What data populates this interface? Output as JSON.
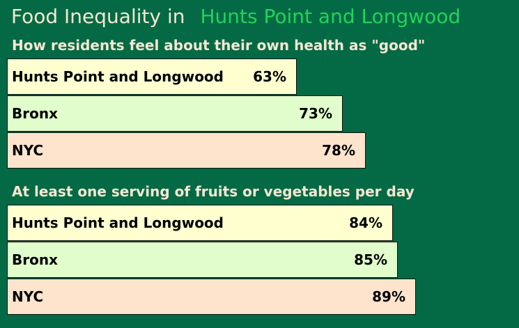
{
  "title": {
    "main": "Food Inequality in",
    "accent": "Hunts Point and Longwood"
  },
  "colors": {
    "background": "#046a45",
    "title_text": "#f6e8d2",
    "accent": "#22d35a",
    "hunts_point_bar": "#ffffd0",
    "bronx_bar": "#e1fdcb",
    "nyc_bar": "#fee4cc"
  },
  "chart_data": [
    {
      "type": "bar",
      "orientation": "horizontal",
      "title": "How residents feel about their own health as \"good\"",
      "categories": [
        "Hunts Point and Longwood",
        "Bronx",
        "NYC"
      ],
      "values": [
        63,
        73,
        78
      ],
      "value_labels": [
        "63%",
        "73%",
        "78%"
      ],
      "unit": "%",
      "xlim": [
        0,
        100
      ],
      "grid": false
    },
    {
      "type": "bar",
      "orientation": "horizontal",
      "title": "At least one serving of fruits or vegetables per day",
      "categories": [
        "Hunts Point and Longwood",
        "Bronx",
        "NYC"
      ],
      "values": [
        84,
        85,
        89
      ],
      "value_labels": [
        "84%",
        "85%",
        "89%"
      ],
      "unit": "%",
      "xlim": [
        0,
        100
      ],
      "grid": false
    }
  ]
}
